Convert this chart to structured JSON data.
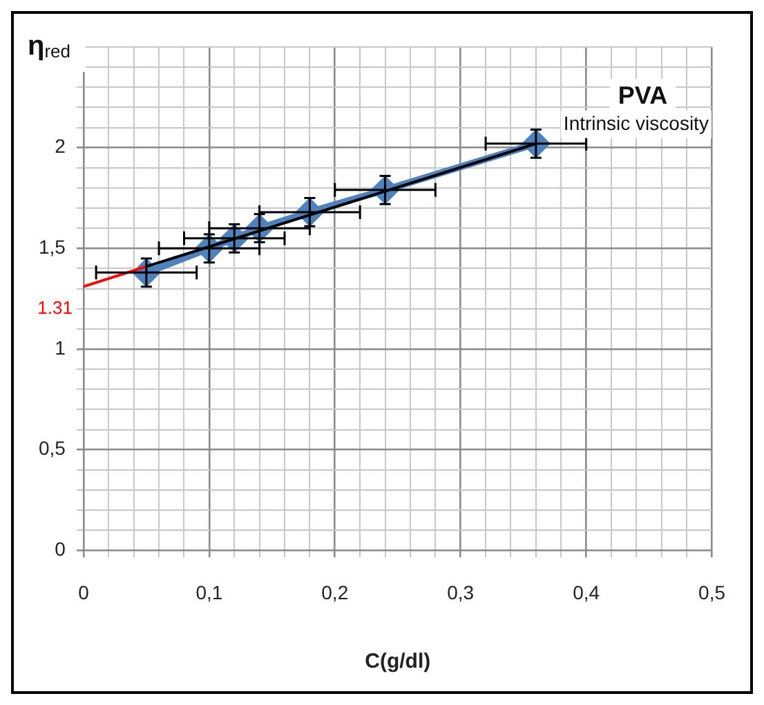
{
  "chart_data": {
    "type": "scatter",
    "title": "PVA",
    "xlabel": "C(g/dl)",
    "ylabel": "η$_{red}$",
    "xlim": [
      0,
      0.5
    ],
    "ylim": [
      0,
      2.5
    ],
    "xticks": [
      {
        "value": 0,
        "label": "0"
      },
      {
        "value": 0.02,
        "label": null
      },
      {
        "value": 0.04,
        "label": null
      },
      {
        "value": 0.06,
        "label": null
      },
      {
        "value": 0.08,
        "label": null
      },
      {
        "value": 0.1,
        "label": "0,1"
      },
      {
        "value": 0.12,
        "label": null
      },
      {
        "value": 0.14,
        "label": null
      },
      {
        "value": 0.16,
        "label": null
      },
      {
        "value": 0.18,
        "label": null
      },
      {
        "value": 0.2,
        "label": "0,2"
      },
      {
        "value": 0.22,
        "label": null
      },
      {
        "value": 0.24,
        "label": null
      },
      {
        "value": 0.26,
        "label": null
      },
      {
        "value": 0.28,
        "label": null
      },
      {
        "value": 0.3,
        "label": "0,3"
      },
      {
        "value": 0.32,
        "label": null
      },
      {
        "value": 0.34,
        "label": null
      },
      {
        "value": 0.36,
        "label": null
      },
      {
        "value": 0.38,
        "label": null
      },
      {
        "value": 0.4,
        "label": "0,4"
      },
      {
        "value": 0.42,
        "label": null
      },
      {
        "value": 0.44,
        "label": null
      },
      {
        "value": 0.46,
        "label": null
      },
      {
        "value": 0.48,
        "label": null
      },
      {
        "value": 0.5,
        "label": "0,5"
      }
    ],
    "yticks": [
      {
        "value": 0,
        "label": "0"
      },
      {
        "value": 0.1,
        "label": null
      },
      {
        "value": 0.2,
        "label": null
      },
      {
        "value": 0.3,
        "label": null
      },
      {
        "value": 0.4,
        "label": null
      },
      {
        "value": 0.5,
        "label": "0,5"
      },
      {
        "value": 0.6,
        "label": null
      },
      {
        "value": 0.7,
        "label": null
      },
      {
        "value": 0.8,
        "label": null
      },
      {
        "value": 0.9,
        "label": null
      },
      {
        "value": 1,
        "label": "1"
      },
      {
        "value": 1.1,
        "label": null
      },
      {
        "value": 1.2,
        "label": null
      },
      {
        "value": 1.3,
        "label": null
      },
      {
        "value": 1.4,
        "label": null
      },
      {
        "value": 1.5,
        "label": "1,5"
      },
      {
        "value": 1.6,
        "label": null
      },
      {
        "value": 1.7,
        "label": null
      },
      {
        "value": 1.8,
        "label": null
      },
      {
        "value": 1.9,
        "label": null
      },
      {
        "value": 2,
        "label": "2"
      },
      {
        "value": 2.1,
        "label": null
      },
      {
        "value": 2.2,
        "label": null
      },
      {
        "value": 2.3,
        "label": null
      },
      {
        "value": 2.4,
        "label": null
      },
      {
        "value": 2.5,
        "label": null
      }
    ],
    "grid": true,
    "legend": false,
    "series": [
      {
        "type": "line",
        "color": "#4f81bd",
        "marker": "diamond",
        "x": [
          0.05,
          0.1,
          0.12,
          0.14,
          0.18,
          0.24,
          0.36
        ],
        "values": [
          1.38,
          1.5,
          1.55,
          1.6,
          1.68,
          1.79,
          2.02
        ],
        "errors": [
          0.07,
          0.07,
          0.07,
          0.07,
          0.07,
          0.07,
          0.07
        ],
        "xerrors": [
          0.04,
          0.04,
          0.04,
          0.04,
          0.04,
          0.04,
          0.04
        ]
      },
      {
        "type": "line",
        "color": "#000000",
        "marker": "none",
        "x": [
          0.05,
          0.36
        ],
        "values": [
          1.41,
          2.02
        ]
      },
      {
        "type": "line",
        "color": "#ff0000",
        "marker": "none",
        "x": [
          0,
          0.05
        ],
        "values": [
          1.31,
          1.41
        ]
      }
    ],
    "annotations": [
      {
        "text": "1.31",
        "x": 0,
        "y": 1.31
      },
      {
        "text": "Intrinsic viscosity",
        "x": 0.36,
        "y": 2.02
      }
    ]
  }
}
